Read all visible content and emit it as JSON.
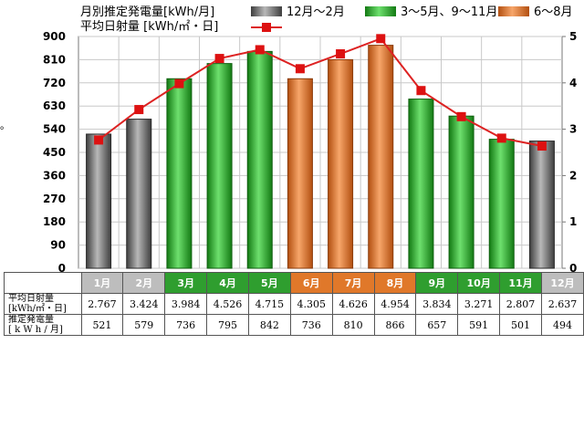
{
  "legend": {
    "bar_title": "月別推定発電量[kWh/月]",
    "line_title": "平均日射量 [kWh/㎡・日]",
    "groups": [
      {
        "label": "12月～2月",
        "color": "#7a7a7a"
      },
      {
        "label": "3～5月、9～11月",
        "color": "#3cae3c"
      },
      {
        "label": "6～8月",
        "color": "#e8823a"
      }
    ]
  },
  "side_mark": "。",
  "table": {
    "row1_label": "平均日射量\n[kWh/㎡・日]",
    "row2_label": "推定発電量\n[ k W h / 月]"
  },
  "chart_data": {
    "type": "bar",
    "categories": [
      "1月",
      "2月",
      "3月",
      "4月",
      "5月",
      "6月",
      "7月",
      "8月",
      "9月",
      "10月",
      "11月",
      "12月"
    ],
    "category_groups": [
      "gray",
      "gray",
      "green",
      "green",
      "green",
      "orange",
      "orange",
      "orange",
      "green",
      "green",
      "green",
      "gray"
    ],
    "series": [
      {
        "type": "bar",
        "axis": "left",
        "values": [
          521,
          579,
          736,
          795,
          842,
          736,
          810,
          866,
          657,
          591,
          501,
          494
        ]
      },
      {
        "type": "line",
        "axis": "right",
        "color": "#dd2222",
        "values": [
          2.767,
          3.424,
          3.984,
          4.526,
          4.715,
          4.305,
          4.626,
          4.954,
          3.834,
          3.271,
          2.807,
          2.637
        ]
      }
    ],
    "row1_values": [
      "2.767",
      "3.424",
      "3.984",
      "4.526",
      "4.715",
      "4.305",
      "4.626",
      "4.954",
      "3.834",
      "3.271",
      "2.807",
      "2.637"
    ],
    "row2_values": [
      "521",
      "579",
      "736",
      "795",
      "842",
      "736",
      "810",
      "866",
      "657",
      "591",
      "501",
      "494"
    ],
    "y_left": {
      "min": 0,
      "max": 900,
      "ticks": [
        0,
        90,
        180,
        270,
        360,
        450,
        540,
        630,
        720,
        810,
        900
      ]
    },
    "y_right": {
      "min": 0,
      "max": 5,
      "ticks": [
        0,
        1,
        2,
        3,
        4,
        5
      ]
    },
    "grid": true,
    "legend_position": "top"
  }
}
